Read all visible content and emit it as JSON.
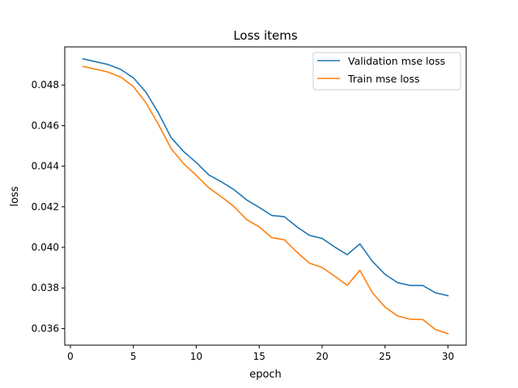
{
  "chart_data": {
    "type": "line",
    "title": "Loss items",
    "xlabel": "epoch",
    "ylabel": "loss",
    "xlim": [
      -0.45,
      31.45
    ],
    "ylim": [
      0.03518,
      0.04988
    ],
    "xticks": [
      0,
      5,
      10,
      15,
      20,
      25,
      30
    ],
    "xtick_labels": [
      "0",
      "5",
      "10",
      "15",
      "20",
      "25",
      "30"
    ],
    "yticks": [
      0.036,
      0.038,
      0.04,
      0.042,
      0.044,
      0.046,
      0.048
    ],
    "ytick_labels": [
      "0.036",
      "0.038",
      "0.040",
      "0.042",
      "0.044",
      "0.046",
      "0.048"
    ],
    "grid": false,
    "legend_position": "top-right",
    "x": [
      1,
      2,
      3,
      4,
      5,
      6,
      7,
      8,
      9,
      10,
      11,
      12,
      13,
      14,
      15,
      16,
      17,
      18,
      19,
      20,
      21,
      22,
      23,
      24,
      25,
      26,
      27,
      28,
      29,
      30
    ],
    "series": [
      {
        "name": "Validation mse loss",
        "color": "#1f77b4",
        "values": [
          0.04929,
          0.04915,
          0.04901,
          0.04877,
          0.04836,
          0.04765,
          0.04662,
          0.04541,
          0.04472,
          0.04418,
          0.04357,
          0.04323,
          0.04284,
          0.04234,
          0.04197,
          0.04157,
          0.04151,
          0.04101,
          0.04059,
          0.04044,
          0.04002,
          0.03964,
          0.04017,
          0.03931,
          0.03867,
          0.03826,
          0.03812,
          0.03812,
          0.03776,
          0.03762
        ]
      },
      {
        "name": "Train mse loss",
        "color": "#ff7f0e",
        "values": [
          0.04892,
          0.04878,
          0.04864,
          0.04839,
          0.04793,
          0.04713,
          0.04605,
          0.04487,
          0.04412,
          0.04355,
          0.04293,
          0.04249,
          0.04201,
          0.04137,
          0.04101,
          0.04048,
          0.04037,
          0.03976,
          0.03922,
          0.03901,
          0.03858,
          0.03813,
          0.03887,
          0.03776,
          0.03706,
          0.03662,
          0.03646,
          0.03644,
          0.03595,
          0.03575
        ]
      }
    ]
  }
}
